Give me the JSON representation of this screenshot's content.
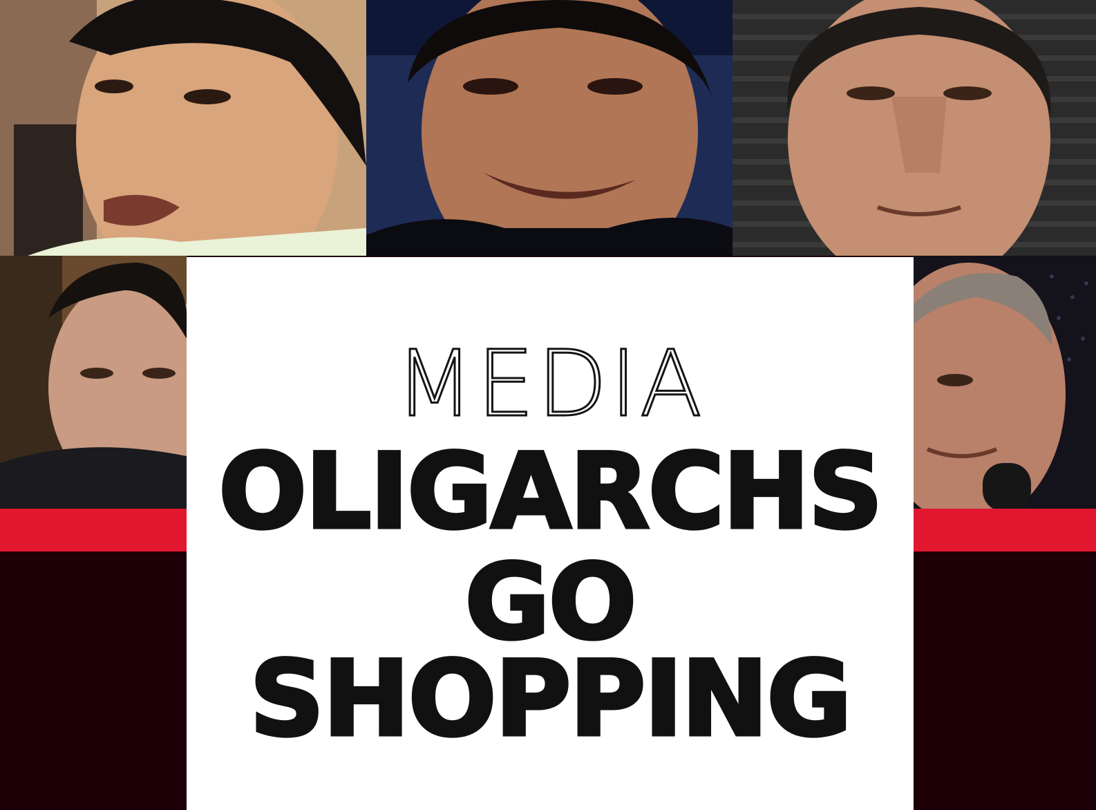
{
  "cover": {
    "kicker": "MEDIA",
    "headline": [
      "OLIGARCHS",
      "GO",
      "SHOPPING"
    ]
  },
  "photos": [
    {
      "subject": "portrait-man-young-asian"
    },
    {
      "subject": "portrait-man-smiling"
    },
    {
      "subject": "portrait-man-grey-hair"
    },
    {
      "subject": "portrait-man-stern"
    },
    {
      "subject": "portrait-man-older-microphone"
    }
  ],
  "colors": {
    "accent": "#e0172f",
    "dark": "#1d0008",
    "panel": "#ffffff",
    "text": "#111111"
  }
}
